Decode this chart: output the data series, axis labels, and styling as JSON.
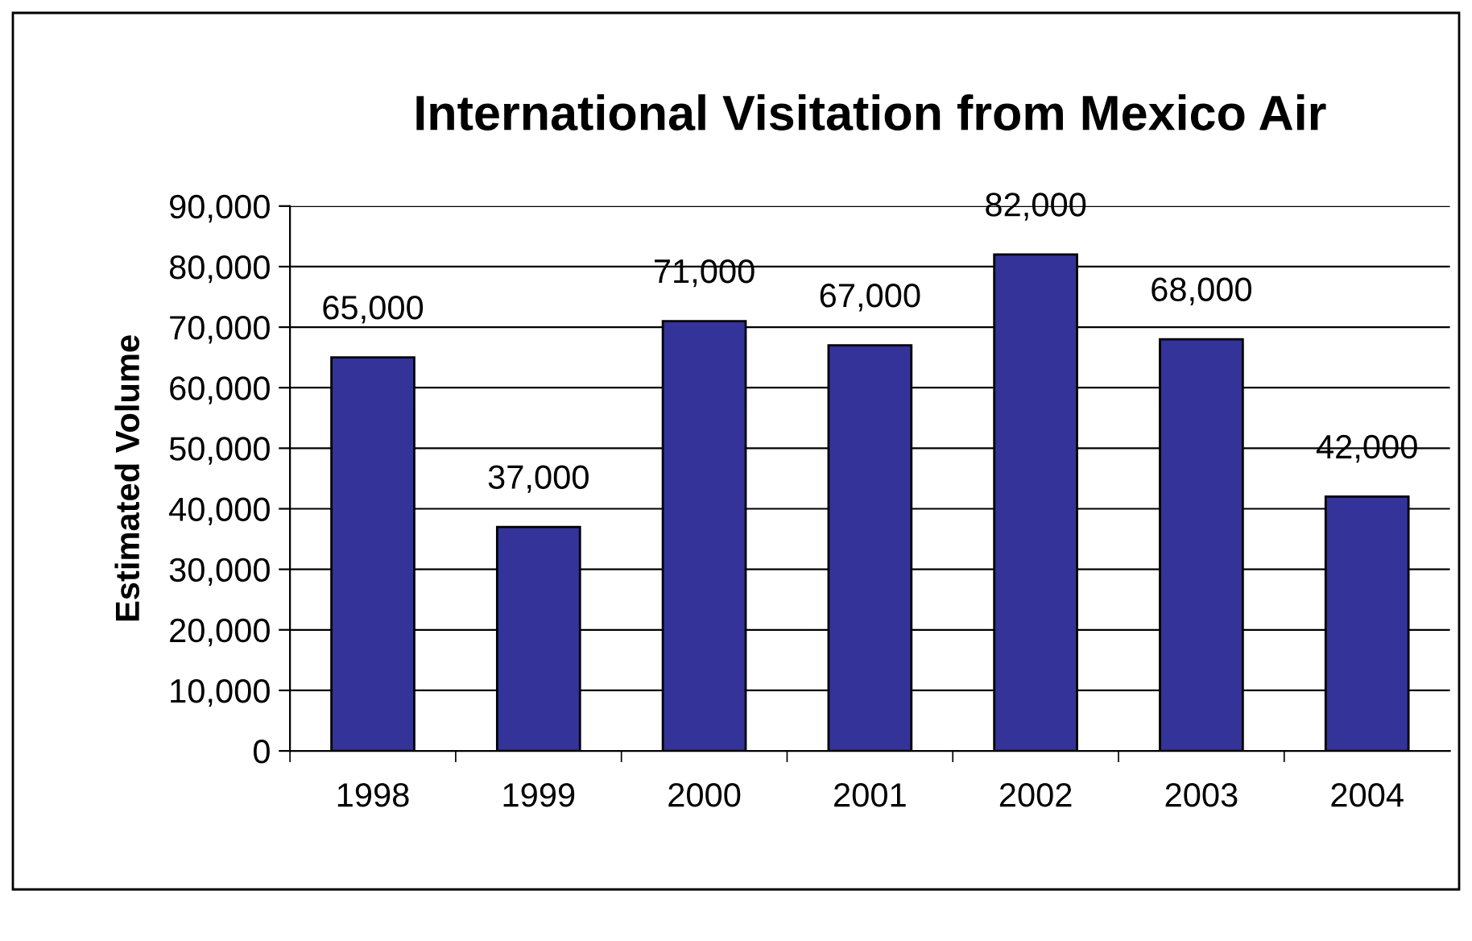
{
  "chart_data": {
    "type": "bar",
    "title": "International Visitation from Mexico Air",
    "ylabel": "Estimated Volume",
    "categories": [
      "1998",
      "1999",
      "2000",
      "2001",
      "2002",
      "2003",
      "2004"
    ],
    "values": [
      65000,
      37000,
      71000,
      67000,
      82000,
      68000,
      42000
    ],
    "color": "#333399",
    "ylim": [
      0,
      90000
    ],
    "yticks": [
      {
        "value": 0,
        "label": "0"
      },
      {
        "value": 10000,
        "label": "10,000"
      },
      {
        "value": 20000,
        "label": "20,000"
      },
      {
        "value": 30000,
        "label": "30,000"
      },
      {
        "value": 40000,
        "label": "40,000"
      },
      {
        "value": 50000,
        "label": "50,000"
      },
      {
        "value": 60000,
        "label": "60,000"
      },
      {
        "value": 70000,
        "label": "70,000"
      },
      {
        "value": 80000,
        "label": "80,000"
      },
      {
        "value": 90000,
        "label": "90,000"
      }
    ],
    "value_labels": [
      "65,000",
      "37,000",
      "71,000",
      "67,000",
      "82,000",
      "68,000",
      "42,000"
    ],
    "grid": "y",
    "legend": false
  }
}
